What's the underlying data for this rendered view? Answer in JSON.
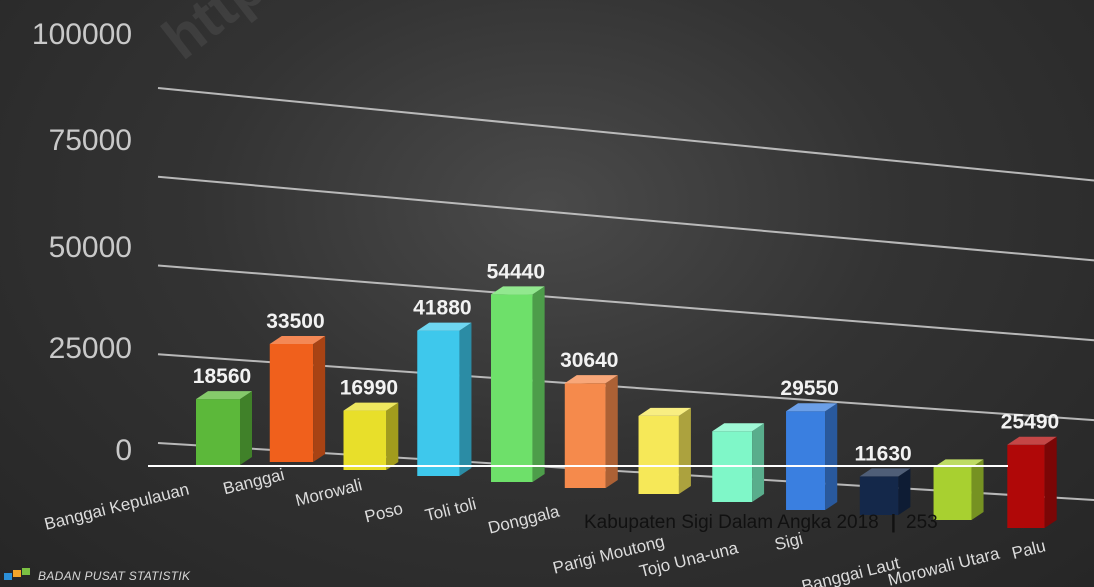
{
  "chart_data": {
    "type": "bar",
    "categories": [
      "Banggai Kepulauan",
      "Banggai",
      "Morowali",
      "Poso",
      "Toli toli",
      "Donggala",
      "Parigi Moutong",
      "Tojo Una-una",
      "Sigi",
      "Banggai Laut",
      "Morowali Utara",
      "Palu"
    ],
    "values": [
      18560,
      33500,
      16990,
      41880,
      54440,
      30640,
      23000,
      21000,
      29550,
      11630,
      16000,
      25490
    ],
    "data_labels": [
      "18560",
      "33500",
      "16990",
      "41880",
      "54440",
      "30640",
      "",
      "",
      "29550",
      "11630",
      "",
      "25490"
    ],
    "yticks": [
      "0",
      "25000",
      "50000",
      "75000",
      "100000"
    ],
    "ylim": [
      0,
      100000
    ],
    "title": "",
    "xlabel": "",
    "ylabel": "",
    "colors": [
      "#5cb83a",
      "#f0601c",
      "#e8df2a",
      "#3ec8ec",
      "#6ee06a",
      "#f58a4c",
      "#f6e858",
      "#7ff7c8",
      "#3a7fe0",
      "#14284a",
      "#a8d030",
      "#b00808",
      "#40b8e0"
    ],
    "grid": true,
    "legend": "none"
  },
  "watermark": "https",
  "footer": {
    "text": "Kabupaten Sigi Dalam Angka 2018",
    "separator": "|",
    "page": "253"
  },
  "logo": {
    "text": "BADAN PUSAT STATISTIK",
    "colors": [
      "#2b8fd8",
      "#f2a52a",
      "#7bc043"
    ]
  }
}
